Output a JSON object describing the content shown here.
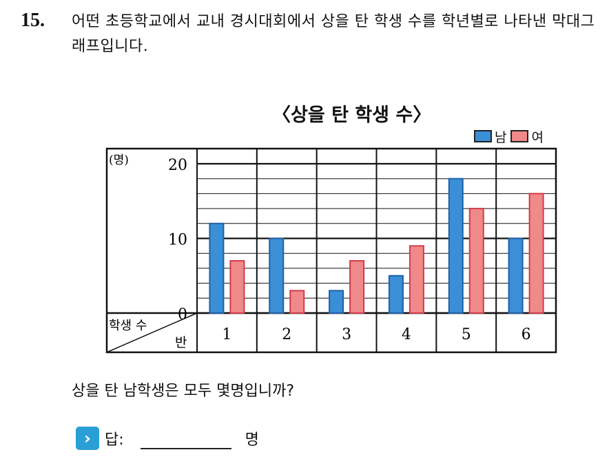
{
  "question": {
    "number": "15.",
    "text": "어떤 초등학교에서 교내 경시대회에서 상을 탄 학생 수를 학년별로 나타낸 막대그래프입니다.",
    "sub_question": "상을 탄 남학생은 모두 몇명입니까?",
    "answer_label": "답:",
    "answer_unit": "명"
  },
  "colors": {
    "male": "#3b8fd6",
    "female": "#f08a8a",
    "male_stroke": "#1f5fa8",
    "female_stroke": "#d23a4a"
  },
  "icons": {
    "answer": "chevron-right-icon"
  },
  "chart_data": {
    "type": "bar",
    "title": "〈상을 탄 학생 수〉",
    "unit_label": "(명)",
    "corner_top": "학생 수",
    "corner_bottom": "반",
    "categories": [
      "1",
      "2",
      "3",
      "4",
      "5",
      "6"
    ],
    "series": [
      {
        "name": "남",
        "values": [
          12,
          10,
          3,
          5,
          18,
          10
        ]
      },
      {
        "name": "여",
        "values": [
          7,
          3,
          7,
          9,
          14,
          16
        ]
      }
    ],
    "y_ticks": [
      "0",
      "10",
      "20"
    ],
    "ylim": [
      0,
      20
    ],
    "legend_position": "top-right",
    "grid": true
  }
}
